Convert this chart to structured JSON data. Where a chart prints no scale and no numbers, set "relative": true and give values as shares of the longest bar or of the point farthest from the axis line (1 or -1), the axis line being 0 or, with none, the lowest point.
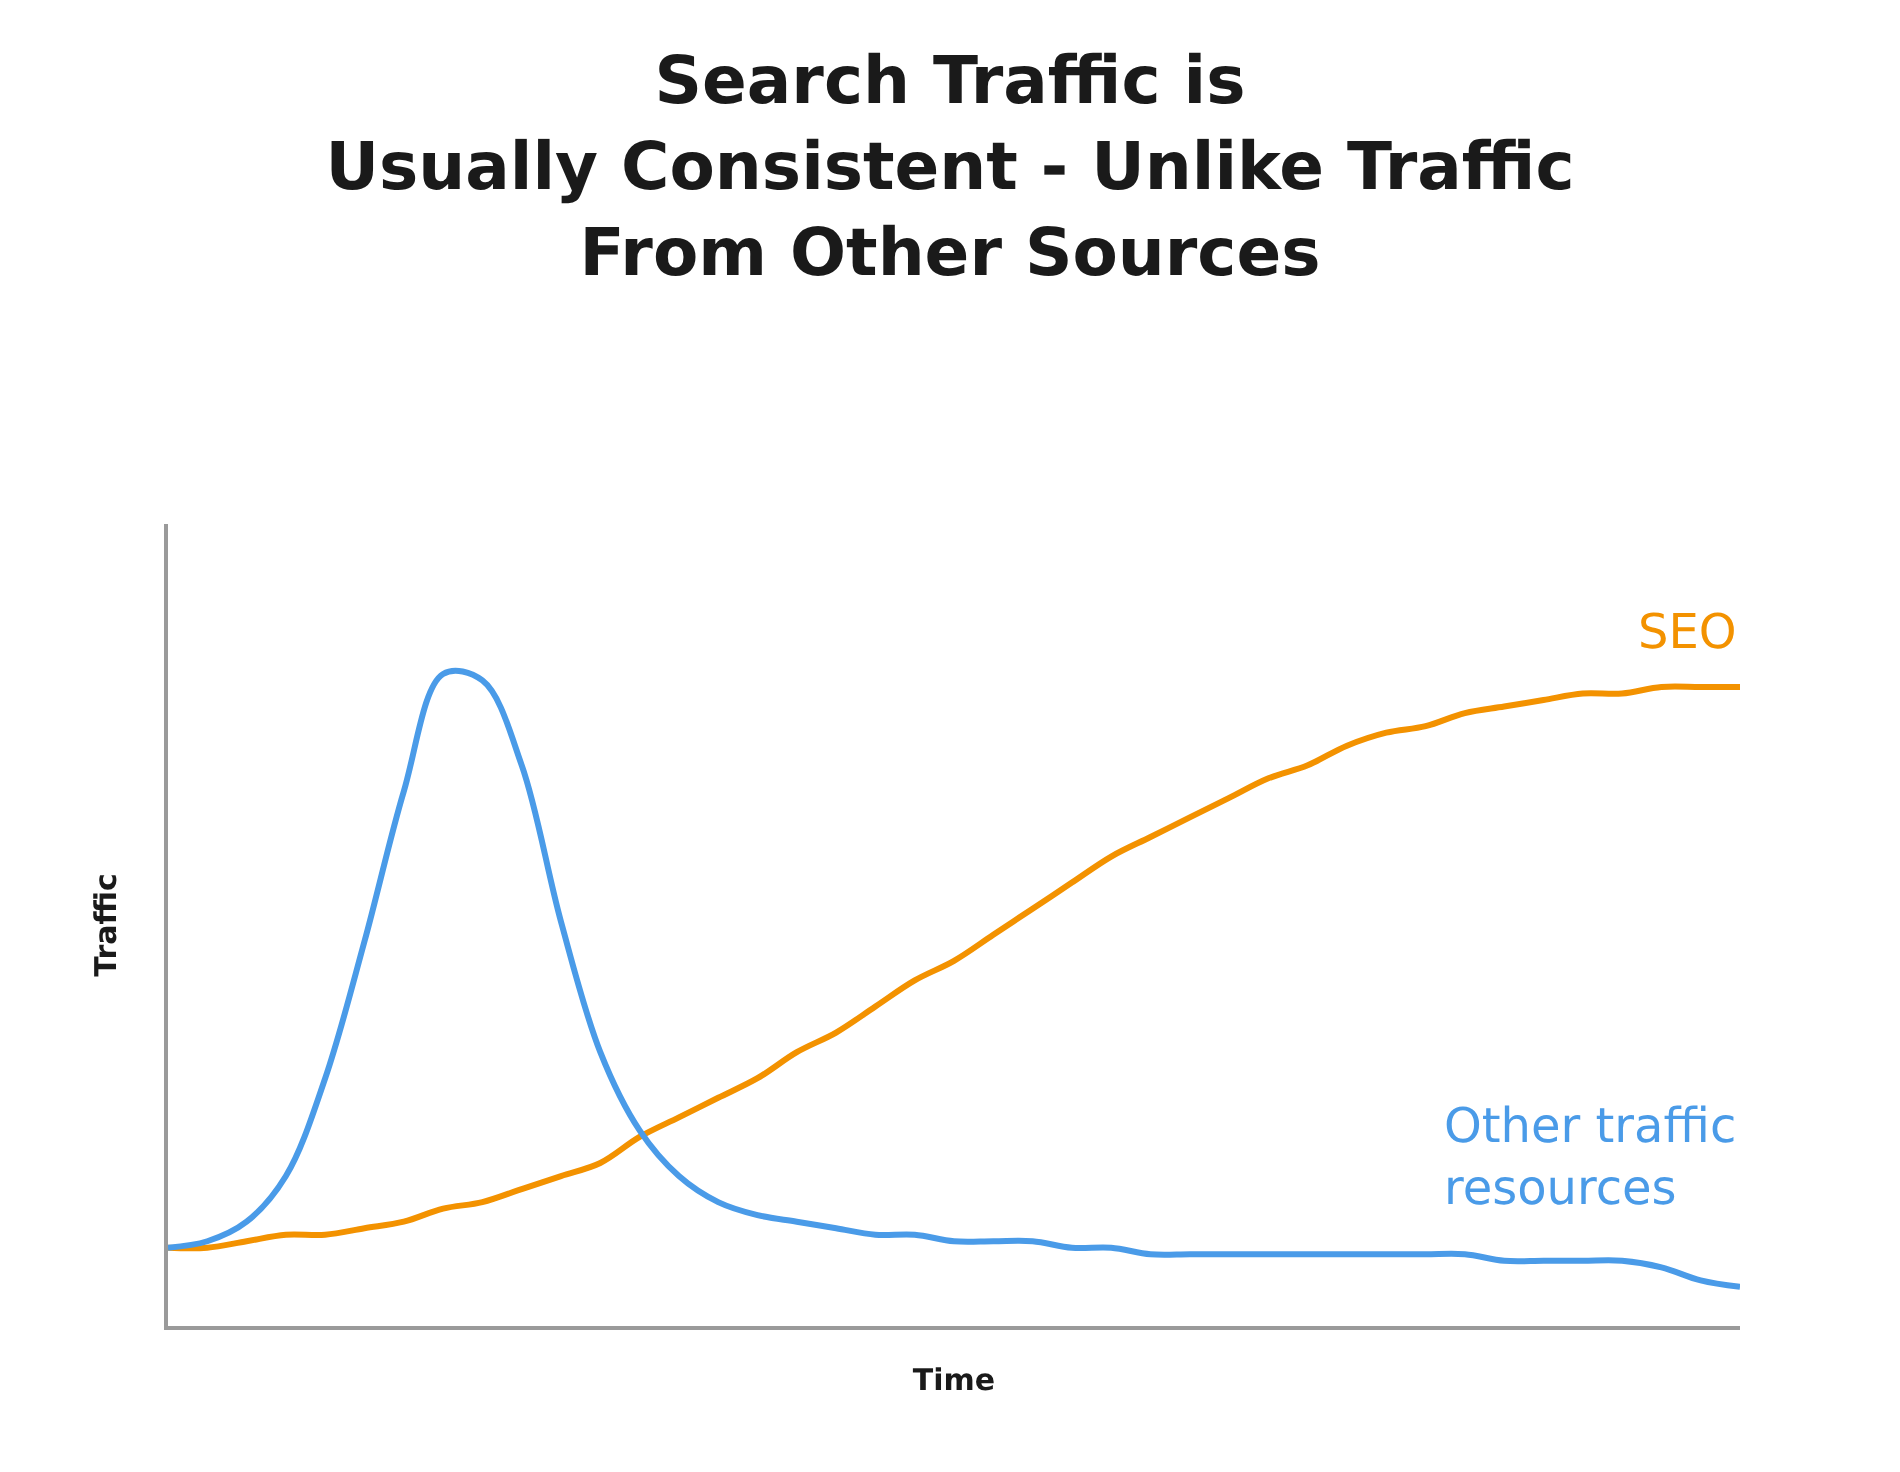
{
  "chart_data": {
    "type": "line",
    "relative": true,
    "title": "Search Traffic is\nUsually Consistent - Unlike Traffic\nFrom Other Sources",
    "xlabel": "Time",
    "ylabel": "Traffic",
    "legend": false,
    "marker": "none",
    "line_style": "solid",
    "categories": [
      null,
      null,
      null,
      null,
      null,
      null,
      null,
      null,
      null,
      null,
      null,
      null,
      null,
      null,
      null,
      null,
      null,
      null,
      null,
      null,
      null,
      null,
      null,
      null,
      null,
      null,
      null,
      null,
      null,
      null,
      null,
      null,
      null,
      null,
      null,
      null,
      null,
      null,
      null,
      null,
      null
    ],
    "series": [
      {
        "name": "SEO",
        "color": "#f39200",
        "values": [
          0.12,
          0.12,
          0.13,
          0.14,
          0.14,
          0.15,
          0.16,
          0.18,
          0.19,
          0.21,
          0.23,
          0.25,
          0.29,
          0.32,
          0.35,
          0.38,
          0.42,
          0.45,
          0.49,
          0.53,
          0.56,
          0.6,
          0.64,
          0.68,
          0.72,
          0.75,
          0.78,
          0.81,
          0.84,
          0.86,
          0.89,
          0.91,
          0.92,
          0.94,
          0.95,
          0.96,
          0.97,
          0.97,
          0.98,
          0.98,
          0.98
        ]
      },
      {
        "name": "Other traffic\nresources",
        "color": "#4a9be8",
        "values": [
          0.12,
          0.13,
          0.16,
          0.23,
          0.38,
          0.59,
          0.82,
          1,
          0.99,
          0.86,
          0.62,
          0.42,
          0.3,
          0.23,
          0.19,
          0.17,
          0.16,
          0.15,
          0.14,
          0.14,
          0.13,
          0.13,
          0.13,
          0.12,
          0.12,
          0.11,
          0.11,
          0.11,
          0.11,
          0.11,
          0.11,
          0.11,
          0.11,
          0.11,
          0.1,
          0.1,
          0.1,
          0.1,
          0.09,
          0.07,
          0.06
        ]
      }
    ]
  }
}
